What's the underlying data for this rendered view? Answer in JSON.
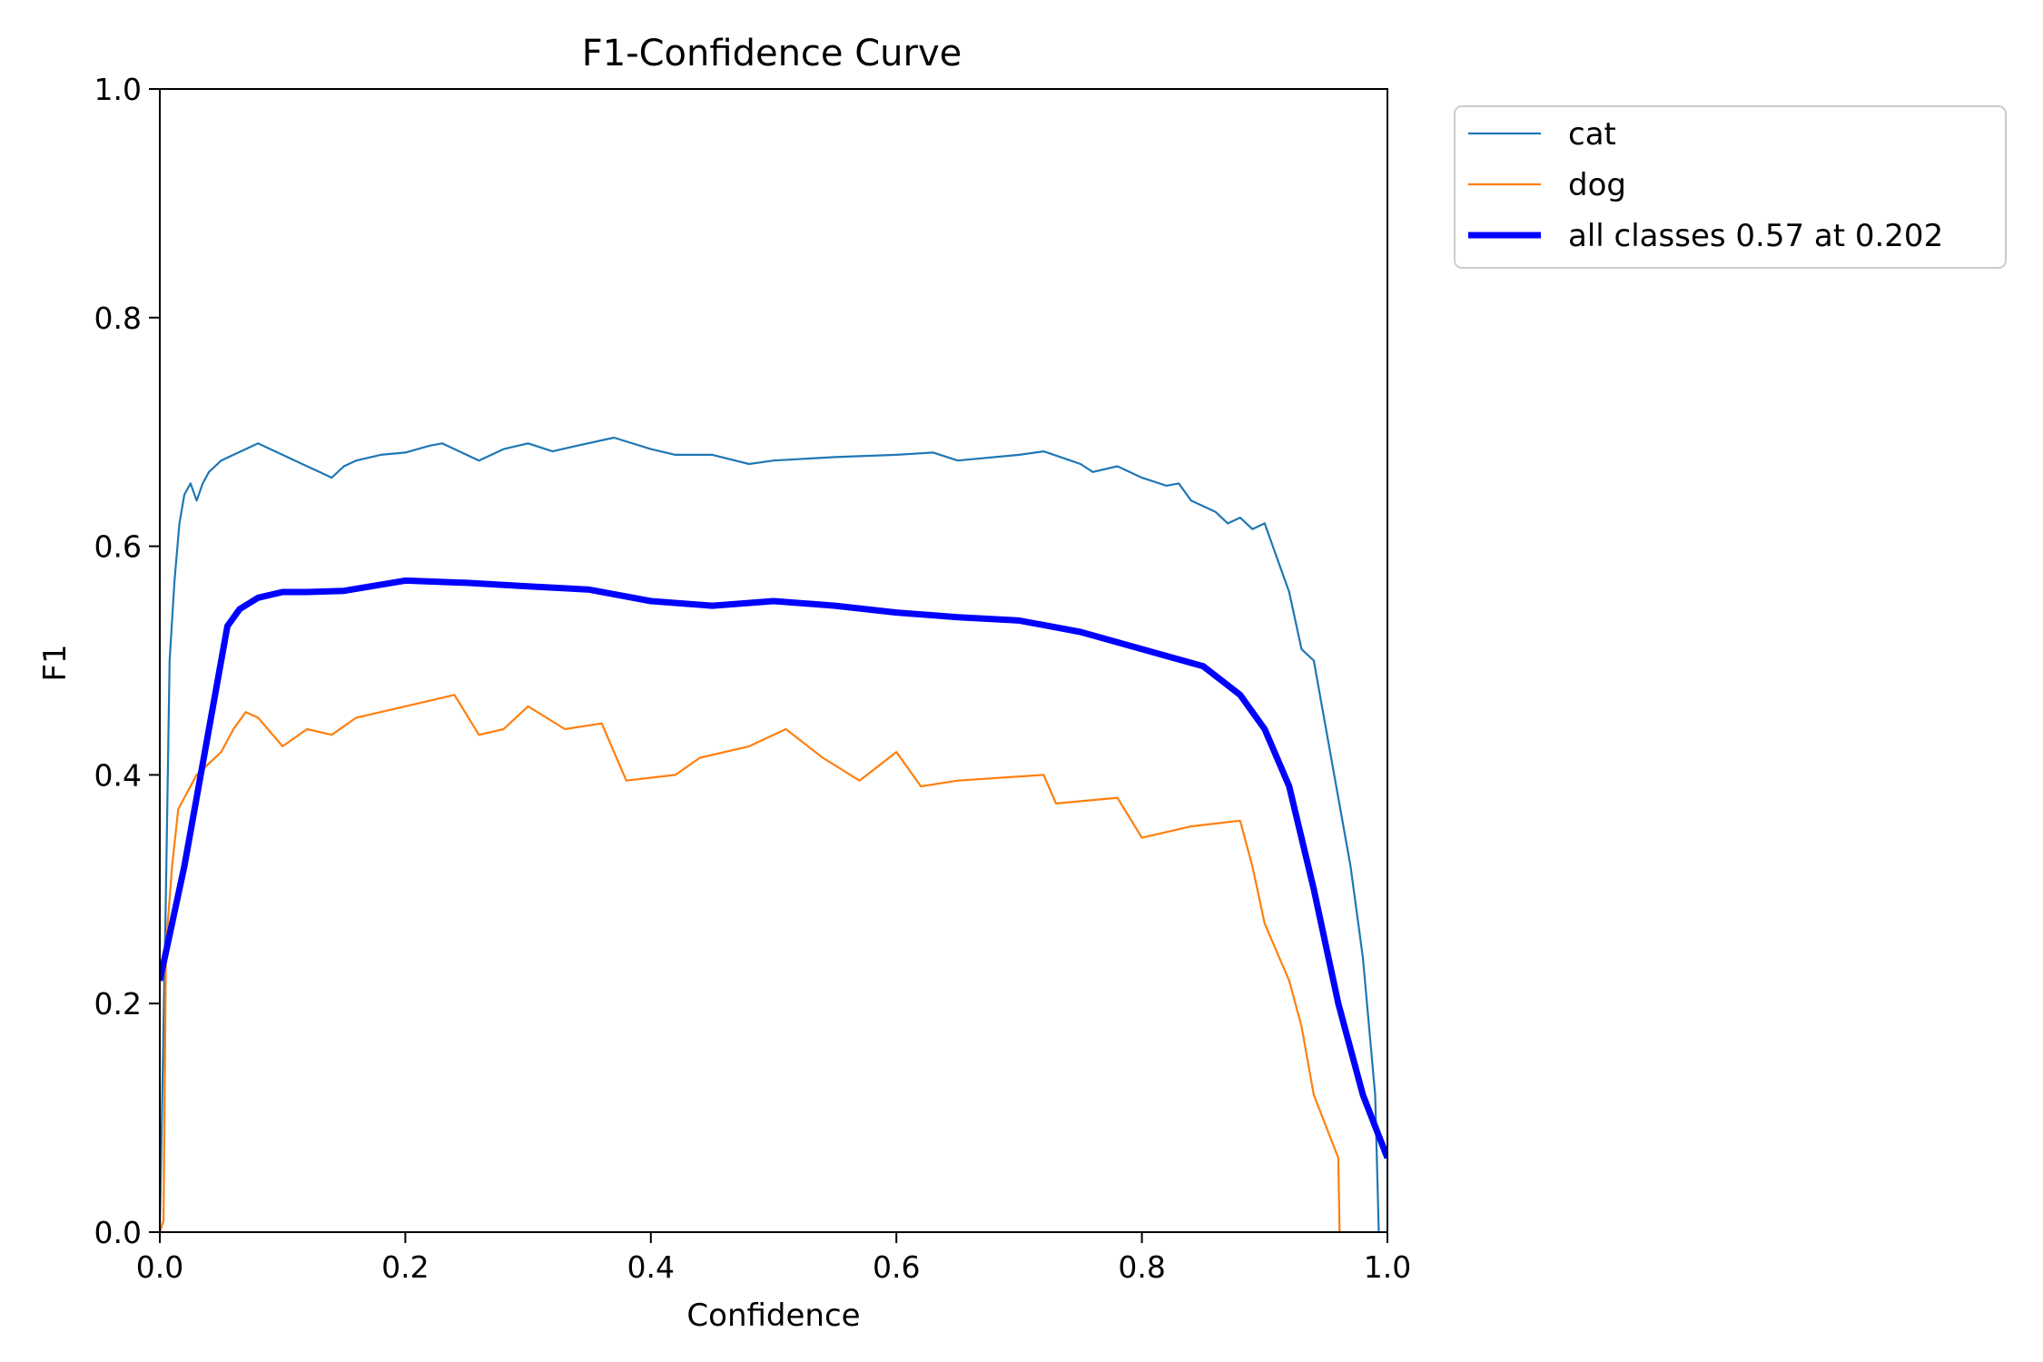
{
  "chart_data": {
    "type": "line",
    "title": "F1-Confidence Curve",
    "xlabel": "Confidence",
    "ylabel": "F1",
    "xlim": [
      0.0,
      1.0
    ],
    "ylim": [
      0.0,
      1.0
    ],
    "xticks": [
      "0.0",
      "0.2",
      "0.4",
      "0.6",
      "0.8",
      "1.0"
    ],
    "yticks": [
      "0.0",
      "0.2",
      "0.4",
      "0.6",
      "0.8",
      "1.0"
    ],
    "grid": false,
    "legend_position": "outside top-right",
    "series": [
      {
        "name": "cat",
        "legend_label": "cat",
        "color": "#1f77b4",
        "x": [
          0.0,
          0.005,
          0.008,
          0.012,
          0.016,
          0.02,
          0.025,
          0.03,
          0.035,
          0.04,
          0.05,
          0.06,
          0.07,
          0.08,
          0.09,
          0.1,
          0.11,
          0.12,
          0.13,
          0.14,
          0.15,
          0.16,
          0.18,
          0.2,
          0.22,
          0.23,
          0.24,
          0.26,
          0.28,
          0.3,
          0.32,
          0.34,
          0.37,
          0.4,
          0.42,
          0.45,
          0.48,
          0.5,
          0.55,
          0.6,
          0.63,
          0.65,
          0.7,
          0.72,
          0.75,
          0.76,
          0.78,
          0.8,
          0.82,
          0.83,
          0.84,
          0.86,
          0.87,
          0.88,
          0.89,
          0.9,
          0.91,
          0.92,
          0.93,
          0.94,
          0.95,
          0.96,
          0.97,
          0.98,
          0.99,
          0.993
        ],
        "values": [
          0.0,
          0.3,
          0.5,
          0.57,
          0.62,
          0.645,
          0.655,
          0.64,
          0.655,
          0.665,
          0.675,
          0.68,
          0.685,
          0.69,
          0.685,
          0.68,
          0.675,
          0.67,
          0.665,
          0.66,
          0.67,
          0.675,
          0.68,
          0.682,
          0.688,
          0.69,
          0.685,
          0.675,
          0.685,
          0.69,
          0.683,
          0.688,
          0.695,
          0.685,
          0.68,
          0.68,
          0.672,
          0.675,
          0.678,
          0.68,
          0.682,
          0.675,
          0.68,
          0.683,
          0.672,
          0.665,
          0.67,
          0.66,
          0.653,
          0.655,
          0.64,
          0.63,
          0.62,
          0.625,
          0.615,
          0.62,
          0.59,
          0.56,
          0.51,
          0.5,
          0.44,
          0.38,
          0.32,
          0.24,
          0.12,
          0.0
        ]
      },
      {
        "name": "dog",
        "legend_label": "dog",
        "color": "#ff7f0e",
        "x": [
          0.0,
          0.003,
          0.005,
          0.01,
          0.015,
          0.02,
          0.03,
          0.04,
          0.05,
          0.06,
          0.07,
          0.08,
          0.1,
          0.12,
          0.14,
          0.16,
          0.2,
          0.24,
          0.26,
          0.28,
          0.3,
          0.33,
          0.36,
          0.38,
          0.42,
          0.44,
          0.48,
          0.51,
          0.54,
          0.57,
          0.6,
          0.62,
          0.65,
          0.72,
          0.73,
          0.78,
          0.8,
          0.84,
          0.88,
          0.89,
          0.9,
          0.92,
          0.93,
          0.94,
          0.96,
          0.961,
          0.965,
          0.97
        ],
        "values": [
          0.0,
          0.01,
          0.25,
          0.32,
          0.37,
          0.38,
          0.4,
          0.41,
          0.42,
          0.44,
          0.455,
          0.45,
          0.425,
          0.44,
          0.435,
          0.45,
          0.46,
          0.47,
          0.435,
          0.44,
          0.46,
          0.44,
          0.445,
          0.395,
          0.4,
          0.415,
          0.425,
          0.44,
          0.415,
          0.395,
          0.42,
          0.39,
          0.395,
          0.4,
          0.375,
          0.38,
          0.345,
          0.355,
          0.36,
          0.32,
          0.27,
          0.22,
          0.18,
          0.12,
          0.065,
          0.0,
          0.0,
          0.0
        ]
      },
      {
        "name": "all classes",
        "legend_label": "all classes 0.57 at 0.202",
        "color": "#0000ff",
        "x": [
          0.0,
          0.02,
          0.04,
          0.055,
          0.065,
          0.08,
          0.1,
          0.12,
          0.15,
          0.2,
          0.25,
          0.3,
          0.35,
          0.4,
          0.45,
          0.5,
          0.55,
          0.6,
          0.65,
          0.7,
          0.75,
          0.8,
          0.85,
          0.88,
          0.9,
          0.92,
          0.94,
          0.96,
          0.98,
          1.0
        ],
        "values": [
          0.22,
          0.32,
          0.44,
          0.53,
          0.545,
          0.555,
          0.56,
          0.56,
          0.561,
          0.57,
          0.568,
          0.565,
          0.562,
          0.552,
          0.548,
          0.552,
          0.548,
          0.542,
          0.538,
          0.535,
          0.525,
          0.51,
          0.495,
          0.47,
          0.44,
          0.39,
          0.3,
          0.2,
          0.12,
          0.065
        ]
      }
    ]
  }
}
